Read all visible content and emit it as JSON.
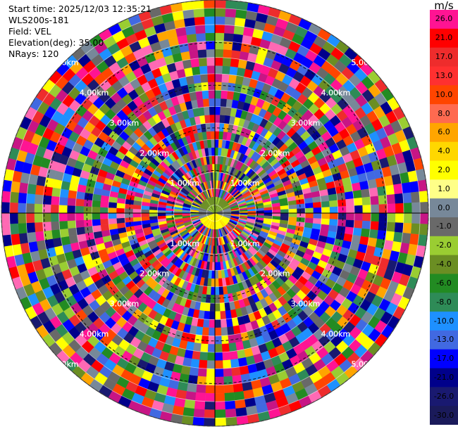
{
  "info": {
    "start_time": "Start time: 2025/12/03 12:35:21",
    "instrument": "WLS200s-181",
    "field": "Field: VEL",
    "elevation": "Elevation(deg): 35.00",
    "nrays": "NRays: 120"
  },
  "chart_data": {
    "type": "heatmap",
    "projection": "polar PPI",
    "field": "VEL",
    "unit": "m/s",
    "n_rays": 120,
    "range_rings": [
      {
        "label": "1.00km",
        "km": 1
      },
      {
        "label": "2.00km",
        "km": 2
      },
      {
        "label": "3.00km",
        "km": 3
      },
      {
        "label": "4.00km",
        "km": 4
      },
      {
        "label": "5.00km",
        "km": 5
      }
    ],
    "max_range_km": 5.0,
    "colorbar": {
      "title": "m/s",
      "bins": [
        {
          "label": "26.0",
          "color": "#ff1493"
        },
        {
          "label": "21.0",
          "color": "#ff0000"
        },
        {
          "label": "17.0",
          "color": "#ee2c2c"
        },
        {
          "label": "13.0",
          "color": "#ff3030"
        },
        {
          "label": "10.0",
          "color": "#ff4500"
        },
        {
          "label": "8.0",
          "color": "#ff6a50"
        },
        {
          "label": "6.0",
          "color": "#ffa500"
        },
        {
          "label": "4.0",
          "color": "#ffd700"
        },
        {
          "label": "2.0",
          "color": "#ffff00"
        },
        {
          "label": "1.0",
          "color": "#ffff88"
        },
        {
          "label": "0.0",
          "color": "#778899"
        },
        {
          "label": "-1.0",
          "color": "#696969"
        },
        {
          "label": "-2.0",
          "color": "#9acd32"
        },
        {
          "label": "-4.0",
          "color": "#6b8e23"
        },
        {
          "label": "-6.0",
          "color": "#228b22"
        },
        {
          "label": "-8.0",
          "color": "#2e8b57"
        },
        {
          "label": "-10.0",
          "color": "#1e90ff"
        },
        {
          "label": "-13.0",
          "color": "#4169e1"
        },
        {
          "label": "-17.0",
          "color": "#0000ff"
        },
        {
          "label": "-21.0",
          "color": "#00008b"
        },
        {
          "label": "-26.0",
          "color": "#191970"
        },
        {
          "label": "-30.0",
          "color": "#1a1a5a"
        }
      ]
    },
    "palette_noise": [
      "#ff1493",
      "#ff0000",
      "#ee2c2c",
      "#ff4500",
      "#ffa500",
      "#ffff00",
      "#9acd32",
      "#6b8e23",
      "#228b22",
      "#2e8b57",
      "#1e90ff",
      "#4169e1",
      "#0000ff",
      "#00008b",
      "#191970",
      "#ff69b4",
      "#c71585",
      "#778899",
      "#696969"
    ]
  }
}
